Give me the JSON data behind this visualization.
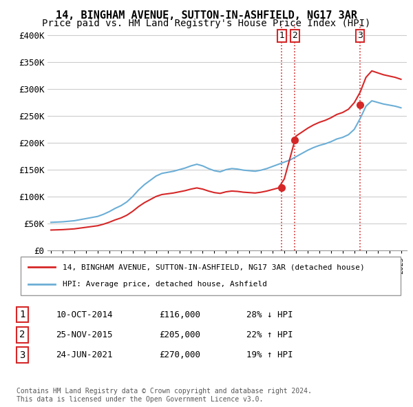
{
  "title": "14, BINGHAM AVENUE, SUTTON-IN-ASHFIELD, NG17 3AR",
  "subtitle": "Price paid vs. HM Land Registry's House Price Index (HPI)",
  "title_fontsize": 11,
  "subtitle_fontsize": 10,
  "ylabel_ticks": [
    "£0",
    "£50K",
    "£100K",
    "£150K",
    "£200K",
    "£250K",
    "£300K",
    "£350K",
    "£400K"
  ],
  "ytick_values": [
    0,
    50000,
    100000,
    150000,
    200000,
    250000,
    300000,
    350000,
    400000
  ],
  "ylim": [
    0,
    420000
  ],
  "xlim_start": 1995.0,
  "xlim_end": 2025.5,
  "hpi_color": "#6baed6",
  "sale_color": "#d62728",
  "sale_points": [
    {
      "year": 2014.79,
      "price": 116000,
      "label": "1"
    },
    {
      "year": 2015.91,
      "price": 205000,
      "label": "2"
    },
    {
      "year": 2021.49,
      "price": 270000,
      "label": "3"
    }
  ],
  "vline_color": "#d62728",
  "vline_style": ":",
  "legend_entries": [
    "14, BINGHAM AVENUE, SUTTON-IN-ASHFIELD, NG17 3AR (detached house)",
    "HPI: Average price, detached house, Ashfield"
  ],
  "table_data": [
    [
      "1",
      "10-OCT-2014",
      "£116,000",
      "28% ↓ HPI"
    ],
    [
      "2",
      "25-NOV-2015",
      "£205,000",
      "22% ↑ HPI"
    ],
    [
      "3",
      "24-JUN-2021",
      "£270,000",
      "19% ↑ HPI"
    ]
  ],
  "footnote": "Contains HM Land Registry data © Crown copyright and database right 2024.\nThis data is licensed under the Open Government Licence v3.0.",
  "background_color": "#ffffff",
  "plot_bg_color": "#ffffff",
  "grid_color": "#cccccc"
}
